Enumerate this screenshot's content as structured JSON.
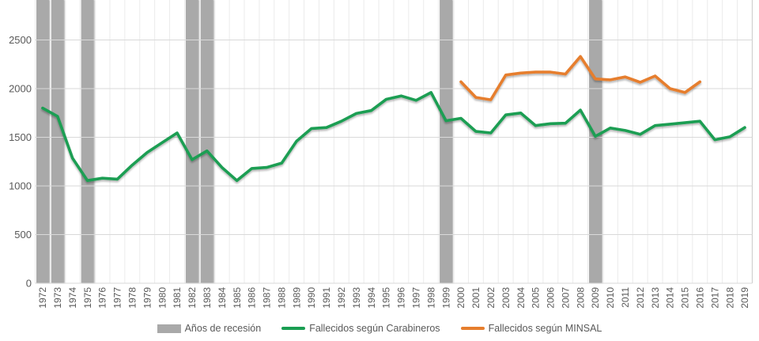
{
  "chart_data": {
    "type": "line",
    "title": "",
    "xlabel": "",
    "ylabel": "",
    "yticks": [
      0,
      500,
      1000,
      1500,
      2000,
      2500
    ],
    "ylim": [
      0,
      2900
    ],
    "grid": true,
    "legend_position": "bottom",
    "years": [
      1972,
      1973,
      1974,
      1975,
      1976,
      1977,
      1978,
      1979,
      1980,
      1981,
      1982,
      1983,
      1984,
      1985,
      1986,
      1987,
      1988,
      1989,
      1990,
      1991,
      1992,
      1993,
      1994,
      1995,
      1996,
      1997,
      1998,
      1999,
      2000,
      2001,
      2002,
      2003,
      2004,
      2005,
      2006,
      2007,
      2008,
      2009,
      2010,
      2011,
      2012,
      2013,
      2014,
      2015,
      2016,
      2017,
      2018,
      2019
    ],
    "recession_years": [
      1972,
      1973,
      1975,
      1982,
      1983,
      1999,
      2009
    ],
    "series": [
      {
        "name": "Fallecidos según Carabineros",
        "color": "#1a9e52",
        "start_year": 1972,
        "values": [
          1800,
          1715,
          1285,
          1055,
          1080,
          1070,
          1215,
          1345,
          1445,
          1545,
          1270,
          1360,
          1190,
          1055,
          1180,
          1190,
          1235,
          1460,
          1590,
          1600,
          1665,
          1745,
          1775,
          1890,
          1925,
          1880,
          1960,
          1670,
          1695,
          1560,
          1545,
          1730,
          1750,
          1620,
          1640,
          1645,
          1780,
          1510,
          1595,
          1570,
          1530,
          1620,
          1635,
          1650,
          1665,
          1475,
          1505,
          1600
        ]
      },
      {
        "name": "Fallecidos según MINSAL",
        "color": "#e67e2d",
        "start_year": 2000,
        "values": [
          2070,
          1910,
          1885,
          2140,
          2160,
          2170,
          2170,
          2150,
          2330,
          2100,
          2090,
          2120,
          2065,
          2130,
          2000,
          1960,
          2070
        ]
      }
    ]
  },
  "legend": {
    "recession_label": "Años de recesión",
    "carabineros_label": "Fallecidos según Carabineros",
    "minsal_label": "Fallecidos según MINSAL"
  },
  "colors": {
    "recession_band": "#a9a9a9",
    "carabineros": "#1a9e52",
    "minsal": "#e67e2d",
    "h_gridline": "#d9d9d9",
    "v_gridline": "#ebebeb",
    "right_border": "#c9c9c9",
    "axis_line": "#d9d9d9",
    "tick_text": "#595959"
  }
}
